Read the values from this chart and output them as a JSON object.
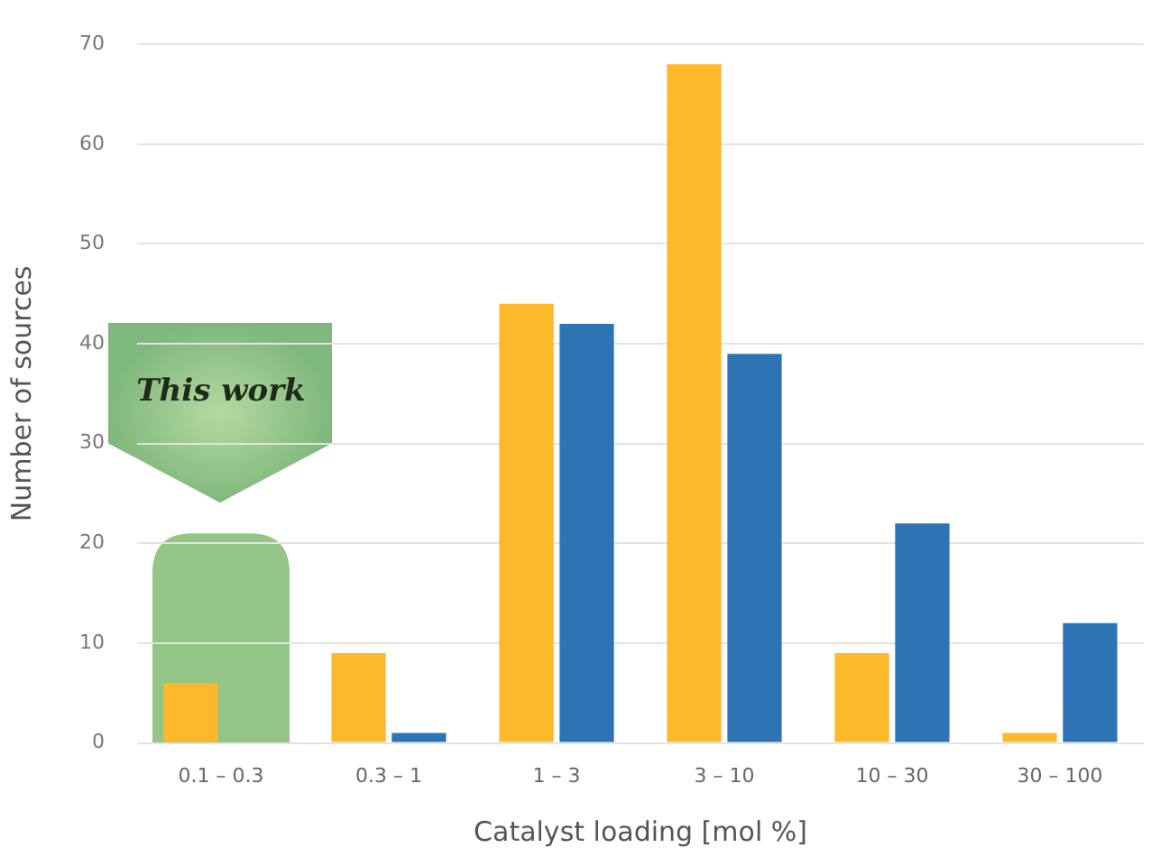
{
  "chart_data": {
    "type": "bar",
    "xlabel": "Catalyst loading [mol %]",
    "ylabel": "Number of sources",
    "categories": [
      "0.1 – 0.3",
      "0.3 – 1",
      "1 – 3",
      "3 – 10",
      "10 – 30",
      "30 – 100"
    ],
    "series": [
      {
        "color": "#fdb92a",
        "values": [
          6,
          9,
          44,
          68,
          9,
          1
        ]
      },
      {
        "color": "#2e74b5",
        "values": [
          0,
          1,
          42,
          39,
          22,
          12
        ]
      }
    ],
    "ylim": [
      0,
      70
    ],
    "yticks": [
      0,
      10,
      20,
      30,
      40,
      50,
      60,
      70
    ],
    "grid": "y",
    "legend": false,
    "bands": [
      {
        "axis": "x",
        "from": "0.1 – 0.3",
        "to": "0.1 – 0.3",
        "color": "#93c587"
      }
    ],
    "annotations": [
      "This work"
    ]
  }
}
